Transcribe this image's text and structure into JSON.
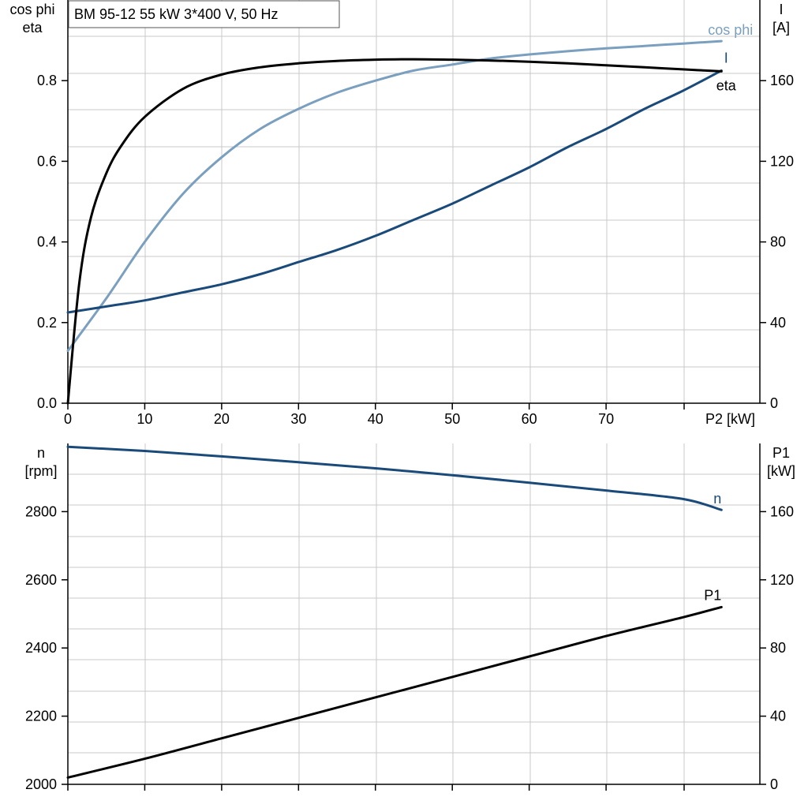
{
  "chart_data": [
    {
      "type": "line",
      "title": "BM 95-12   55 kW   3*400 V, 50 Hz",
      "xlabel": "P2 [kW]",
      "ylabel_left": [
        "cos phi",
        "eta"
      ],
      "ylabel_right": [
        "I",
        "[A]"
      ],
      "xlim": [
        0,
        90
      ],
      "ylim_left": [
        0,
        1.0
      ],
      "ylim_right": [
        0,
        200
      ],
      "x_ticks": [
        0,
        10,
        20,
        30,
        40,
        50,
        60,
        70
      ],
      "x_tick_labels": [
        "0",
        "10",
        "20",
        "30",
        "40",
        "50",
        "60",
        "70"
      ],
      "y_ticks_left": [
        0.0,
        0.2,
        0.4,
        0.6,
        0.8
      ],
      "y_tick_labels_left": [
        "0.0",
        "0.2",
        "0.4",
        "0.6",
        "0.8"
      ],
      "y_ticks_right": [
        0,
        40,
        80,
        120,
        160
      ],
      "y_tick_labels_right": [
        "0",
        "40",
        "80",
        "120",
        "160"
      ],
      "grid": true,
      "series": [
        {
          "name": "cos phi",
          "axis": "left",
          "color": "#7a9fbf",
          "x": [
            0,
            5,
            10,
            15,
            20,
            25,
            30,
            35,
            40,
            45,
            50,
            55,
            60,
            65,
            70,
            75,
            80,
            85
          ],
          "y": [
            0.13,
            0.26,
            0.4,
            0.52,
            0.61,
            0.68,
            0.73,
            0.77,
            0.8,
            0.825,
            0.84,
            0.855,
            0.865,
            0.873,
            0.88,
            0.886,
            0.892,
            0.898
          ]
        },
        {
          "name": "I",
          "axis": "right",
          "color": "#1a4a7a",
          "x": [
            0,
            5,
            10,
            15,
            20,
            25,
            30,
            35,
            40,
            45,
            50,
            55,
            60,
            65,
            70,
            75,
            80,
            85
          ],
          "y": [
            45,
            48,
            51,
            55,
            59,
            64,
            70,
            76,
            83,
            91,
            99,
            108,
            117,
            127,
            136,
            146,
            155,
            165
          ]
        },
        {
          "name": "eta",
          "axis": "left",
          "color": "#000000",
          "x": [
            0,
            1.5,
            3,
            5,
            7,
            10,
            15,
            20,
            25,
            30,
            35,
            40,
            45,
            50,
            55,
            60,
            65,
            70,
            75,
            80,
            85
          ],
          "y": [
            0,
            0.3,
            0.46,
            0.57,
            0.64,
            0.71,
            0.78,
            0.815,
            0.833,
            0.843,
            0.849,
            0.852,
            0.853,
            0.852,
            0.85,
            0.847,
            0.843,
            0.838,
            0.833,
            0.828,
            0.823
          ]
        }
      ]
    },
    {
      "type": "line",
      "title": "",
      "xlabel": "",
      "ylabel_left": [
        "n",
        "[rpm]"
      ],
      "ylabel_right": [
        "P1",
        "[kW]"
      ],
      "xlim": [
        0,
        90
      ],
      "ylim_left": [
        2000,
        3000
      ],
      "ylim_right": [
        0,
        200
      ],
      "x_ticks": [
        0,
        10,
        20,
        30,
        40,
        50,
        60,
        70
      ],
      "y_ticks_left": [
        2000,
        2200,
        2400,
        2600,
        2800
      ],
      "y_tick_labels_left": [
        "2000",
        "2200",
        "2400",
        "2600",
        "2800"
      ],
      "y_ticks_right": [
        0,
        40,
        80,
        120,
        160
      ],
      "y_tick_labels_right": [
        "0",
        "40",
        "80",
        "120",
        "160"
      ],
      "grid": true,
      "series": [
        {
          "name": "n",
          "axis": "left",
          "color": "#1a4a7a",
          "x": [
            0,
            10,
            20,
            30,
            40,
            50,
            60,
            70,
            80,
            85
          ],
          "y": [
            2990,
            2978,
            2962,
            2945,
            2927,
            2907,
            2885,
            2862,
            2837,
            2805
          ]
        },
        {
          "name": "P1",
          "axis": "right",
          "color": "#000000",
          "x": [
            0,
            10,
            20,
            30,
            40,
            50,
            60,
            70,
            80,
            85
          ],
          "y": [
            4,
            15,
            27,
            39,
            51,
            63,
            75,
            87,
            98,
            104
          ]
        }
      ]
    }
  ]
}
